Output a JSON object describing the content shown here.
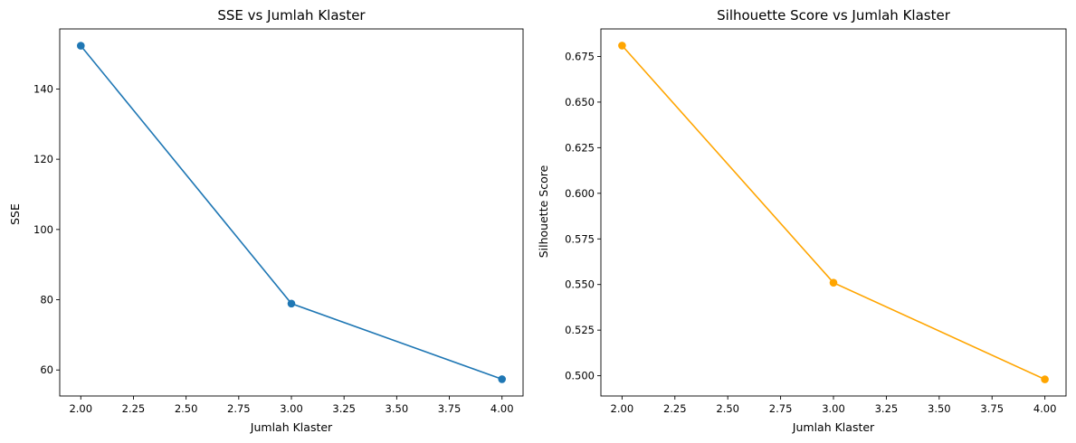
{
  "chart_data": [
    {
      "type": "line",
      "title": "SSE vs Jumlah Klaster",
      "xlabel": "Jumlah Klaster",
      "ylabel": "SSE",
      "x": [
        2,
        3,
        4
      ],
      "series": [
        {
          "values": [
            152.3,
            78.9,
            57.4
          ],
          "color": "#1f77b4",
          "marker": "circle"
        }
      ],
      "xlim": [
        1.9,
        4.1
      ],
      "ylim": [
        52.6,
        157.1
      ],
      "xticks": [
        2.0,
        2.25,
        2.5,
        2.75,
        3.0,
        3.25,
        3.5,
        3.75,
        4.0
      ],
      "xtick_labels": [
        "2.00",
        "2.25",
        "2.50",
        "2.75",
        "3.00",
        "3.25",
        "3.50",
        "3.75",
        "4.00"
      ],
      "yticks": [
        60,
        80,
        100,
        120,
        140
      ],
      "ytick_labels": [
        "60",
        "80",
        "100",
        "120",
        "140"
      ],
      "grid": false,
      "legend": "none"
    },
    {
      "type": "line",
      "title": "Silhouette Score vs Jumlah Klaster",
      "xlabel": "Jumlah Klaster",
      "ylabel": "Silhouette Score",
      "x": [
        2,
        3,
        4
      ],
      "series": [
        {
          "values": [
            0.681,
            0.551,
            0.498
          ],
          "color": "#ffa500",
          "marker": "circle"
        }
      ],
      "xlim": [
        1.9,
        4.1
      ],
      "ylim": [
        0.4889,
        0.6901
      ],
      "xticks": [
        2.0,
        2.25,
        2.5,
        2.75,
        3.0,
        3.25,
        3.5,
        3.75,
        4.0
      ],
      "xtick_labels": [
        "2.00",
        "2.25",
        "2.50",
        "2.75",
        "3.00",
        "3.25",
        "3.50",
        "3.75",
        "4.00"
      ],
      "yticks": [
        0.5,
        0.525,
        0.55,
        0.575,
        0.6,
        0.625,
        0.65,
        0.675
      ],
      "ytick_labels": [
        "0.500",
        "0.525",
        "0.550",
        "0.575",
        "0.600",
        "0.625",
        "0.650",
        "0.675"
      ],
      "grid": false,
      "legend": "none"
    }
  ]
}
